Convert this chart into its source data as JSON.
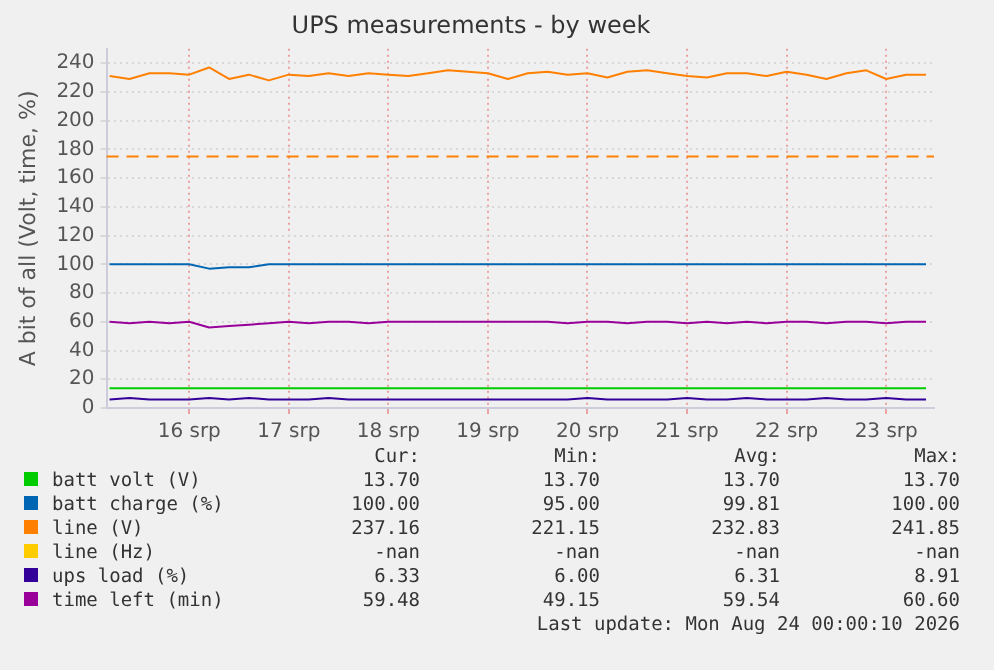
{
  "chart_data": {
    "type": "line",
    "title": "UPS measurements - by week",
    "ylabel": "A bit of all (Volt, time, %)",
    "x": [
      15.2,
      15.4,
      15.6,
      15.8,
      16.0,
      16.2,
      16.4,
      16.6,
      16.8,
      17.0,
      17.2,
      17.4,
      17.6,
      17.8,
      18.0,
      18.2,
      18.4,
      18.6,
      18.8,
      19.0,
      19.2,
      19.4,
      19.6,
      19.8,
      20.0,
      20.2,
      20.4,
      20.6,
      20.8,
      21.0,
      21.2,
      21.4,
      21.6,
      21.8,
      22.0,
      22.2,
      22.4,
      22.6,
      22.8,
      23.0,
      23.2,
      23.4
    ],
    "xlim": [
      15.17,
      23.48
    ],
    "xticks": [
      {
        "value": 16,
        "label": "16 srp"
      },
      {
        "value": 17,
        "label": "17 srp"
      },
      {
        "value": 18,
        "label": "18 srp"
      },
      {
        "value": 19,
        "label": "19 srp"
      },
      {
        "value": 20,
        "label": "20 srp"
      },
      {
        "value": 21,
        "label": "21 srp"
      },
      {
        "value": 22,
        "label": "22 srp"
      },
      {
        "value": 23,
        "label": "23 srp"
      }
    ],
    "ylim": [
      0,
      250
    ],
    "yticks": [
      0,
      20,
      40,
      60,
      80,
      100,
      120,
      140,
      160,
      180,
      200,
      220,
      240
    ],
    "grid": true,
    "legend": "bottom",
    "marker": "none",
    "line_style": "solid",
    "series": [
      {
        "name": "batt volt (V)",
        "color": "#00cc00",
        "values": [
          13.7,
          13.7,
          13.7,
          13.7,
          13.7,
          13.7,
          13.7,
          13.7,
          13.7,
          13.7,
          13.7,
          13.7,
          13.7,
          13.7,
          13.7,
          13.7,
          13.7,
          13.7,
          13.7,
          13.7,
          13.7,
          13.7,
          13.7,
          13.7,
          13.7,
          13.7,
          13.7,
          13.7,
          13.7,
          13.7,
          13.7,
          13.7,
          13.7,
          13.7,
          13.7,
          13.7,
          13.7,
          13.7,
          13.7,
          13.7,
          13.7,
          13.7
        ]
      },
      {
        "name": "batt charge (%)",
        "color": "#0066b3",
        "values": [
          100,
          100,
          100,
          100,
          100,
          97,
          98,
          98,
          100,
          100,
          100,
          100,
          100,
          100,
          100,
          100,
          100,
          100,
          100,
          100,
          100,
          100,
          100,
          100,
          100,
          100,
          100,
          100,
          100,
          100,
          100,
          100,
          100,
          100,
          100,
          100,
          100,
          100,
          100,
          100,
          100,
          100
        ]
      },
      {
        "name": "line (V)",
        "color": "#ff8000",
        "values": [
          231,
          229,
          233,
          233,
          232,
          237,
          229,
          232,
          228,
          232,
          231,
          233,
          231,
          233,
          232,
          231,
          233,
          235,
          234,
          233,
          229,
          233,
          234,
          232,
          233,
          230,
          234,
          235,
          233,
          231,
          230,
          233,
          233,
          231,
          234,
          232,
          229,
          233,
          235,
          229,
          232,
          232
        ]
      },
      {
        "name": "line (Hz)",
        "color": "#ffcc00",
        "values": [
          null,
          null,
          null,
          null,
          null,
          null,
          null,
          null,
          null,
          null,
          null,
          null,
          null,
          null,
          null,
          null,
          null,
          null,
          null,
          null,
          null,
          null,
          null,
          null,
          null,
          null,
          null,
          null,
          null,
          null,
          null,
          null,
          null,
          null,
          null,
          null,
          null,
          null,
          null,
          null,
          null,
          null
        ]
      },
      {
        "name": "ups load (%)",
        "color": "#330099",
        "values": [
          6,
          7,
          6,
          6,
          6,
          7,
          6,
          7,
          6,
          6,
          6,
          7,
          6,
          6,
          6,
          6,
          6,
          6,
          6,
          6,
          6,
          6,
          6,
          6,
          7,
          6,
          6,
          6,
          6,
          7,
          6,
          6,
          7,
          6,
          6,
          6,
          7,
          6,
          6,
          7,
          6,
          6
        ]
      },
      {
        "name": "time left (min)",
        "color": "#990099",
        "values": [
          60,
          59,
          60,
          59,
          60,
          56,
          57,
          58,
          59,
          60,
          59,
          60,
          60,
          59,
          60,
          60,
          60,
          60,
          60,
          60,
          60,
          60,
          60,
          59,
          60,
          60,
          59,
          60,
          60,
          59,
          60,
          59,
          60,
          59,
          60,
          60,
          59,
          60,
          60,
          59,
          60,
          60
        ]
      }
    ],
    "ref_lines": [
      {
        "axis": "y",
        "value": 175,
        "color": "#ff8000",
        "line_style": "dashed"
      }
    ],
    "annotations": [
      "Cur:",
      "Min:",
      "Avg:",
      "Max:",
      "13.70",
      "13.70",
      "13.70",
      "13.70",
      "100.00",
      "95.00",
      "99.81",
      "100.00",
      "237.16",
      "221.15",
      "232.83",
      "241.85",
      "-nan",
      "-nan",
      "-nan",
      "-nan",
      "6.33",
      "6.00",
      "6.31",
      "8.91",
      "59.48",
      "49.15",
      "59.54",
      "60.60",
      "Last update: Mon Aug 24 00:00:10 2026"
    ]
  }
}
